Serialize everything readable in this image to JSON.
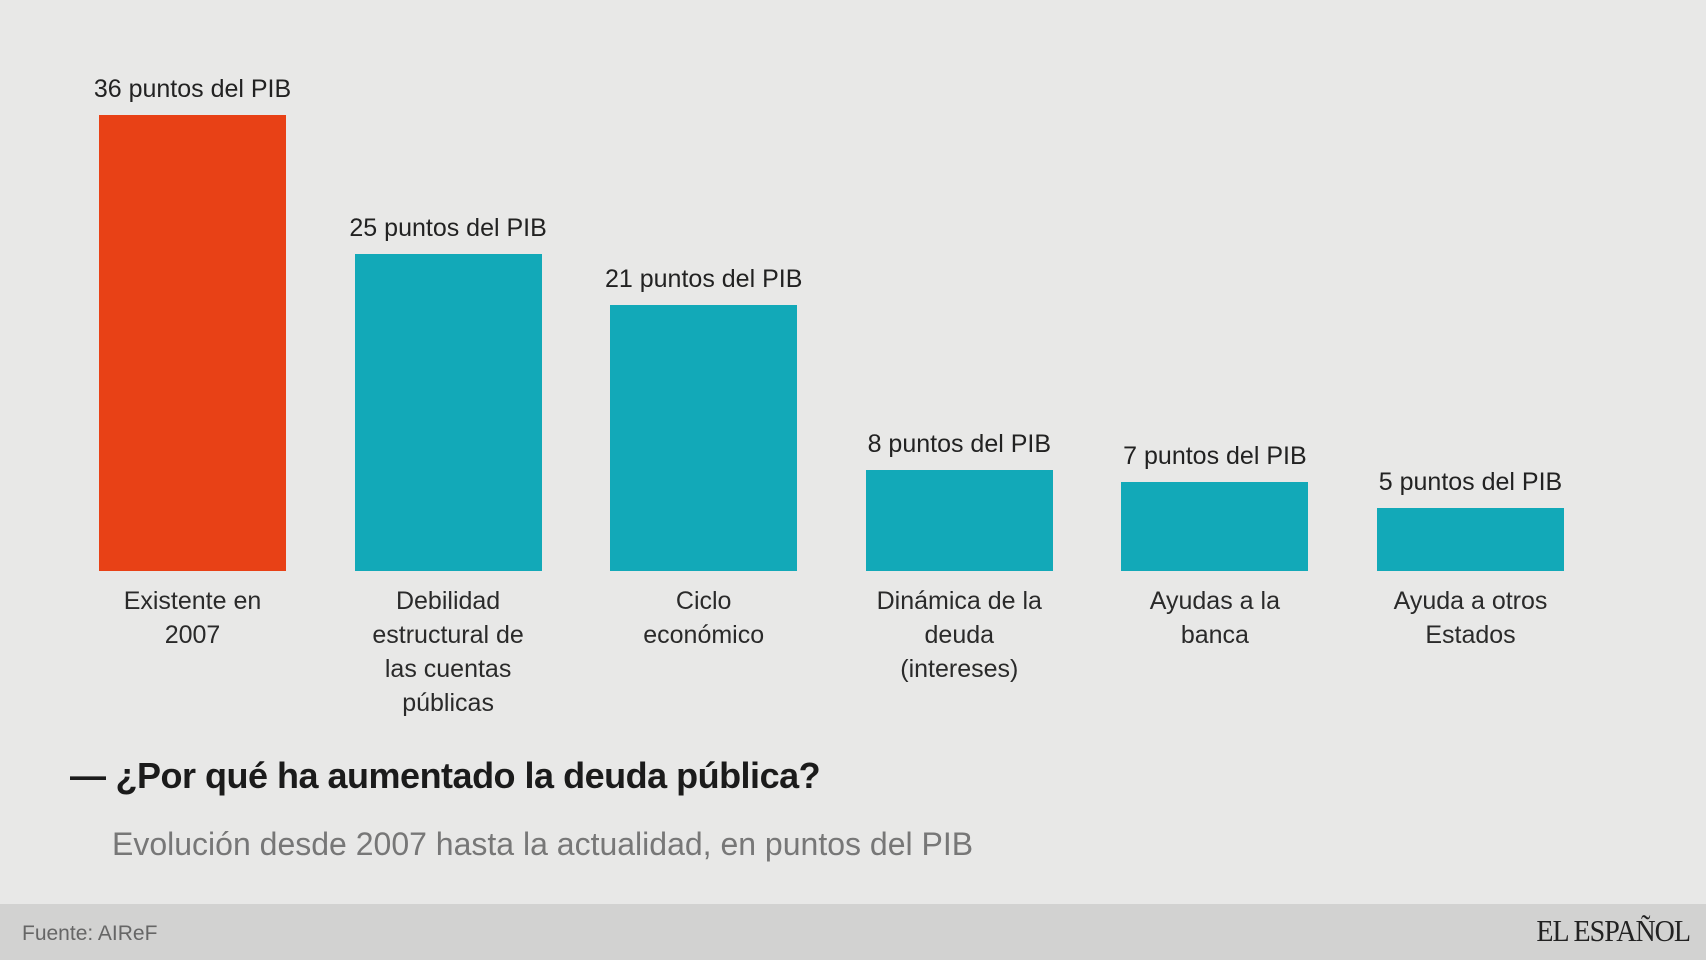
{
  "chart_data": {
    "type": "bar",
    "title": "¿Por qué ha aumentado la deuda pública?",
    "subtitle": "Evolución desde 2007 hasta la actualidad, en puntos del PIB",
    "xlabel": "",
    "ylabel": "",
    "ylim": [
      0,
      36
    ],
    "grid": false,
    "categories": [
      "Existente en 2007",
      "Debilidad estructural de las cuentas públicas",
      "Ciclo económico",
      "Dinámica de la deuda (intereses)",
      "Ayudas a la banca",
      "Ayuda a otros Estados"
    ],
    "category_lines": [
      [
        "Existente en",
        "2007"
      ],
      [
        "Debilidad",
        "estructural de",
        "las cuentas",
        "públicas"
      ],
      [
        "Ciclo",
        "económico"
      ],
      [
        "Dinámica de la",
        "deuda",
        "(intereses)"
      ],
      [
        "Ayudas a la",
        "banca"
      ],
      [
        "Ayuda a otros",
        "Estados"
      ]
    ],
    "values": [
      36,
      25,
      21,
      8,
      7,
      5
    ],
    "data_labels": [
      "36 puntos del PIB",
      "25 puntos del PIB",
      "21 puntos del PIB",
      "8 puntos del PIB",
      "7 puntos del PIB",
      "5 puntos del PIB"
    ],
    "colors": [
      "#e84116",
      "#12a9b8",
      "#12a9b8",
      "#12a9b8",
      "#12a9b8",
      "#12a9b8"
    ]
  },
  "header": {
    "dash": "—",
    "title": "¿Por qué ha aumentado la deuda pública?",
    "subtitle": "Evolución desde 2007 hasta la actualidad, en puntos del PIB"
  },
  "footer": {
    "source": "Fuente: AIReF",
    "logo": "EL ESPAÑOL"
  }
}
